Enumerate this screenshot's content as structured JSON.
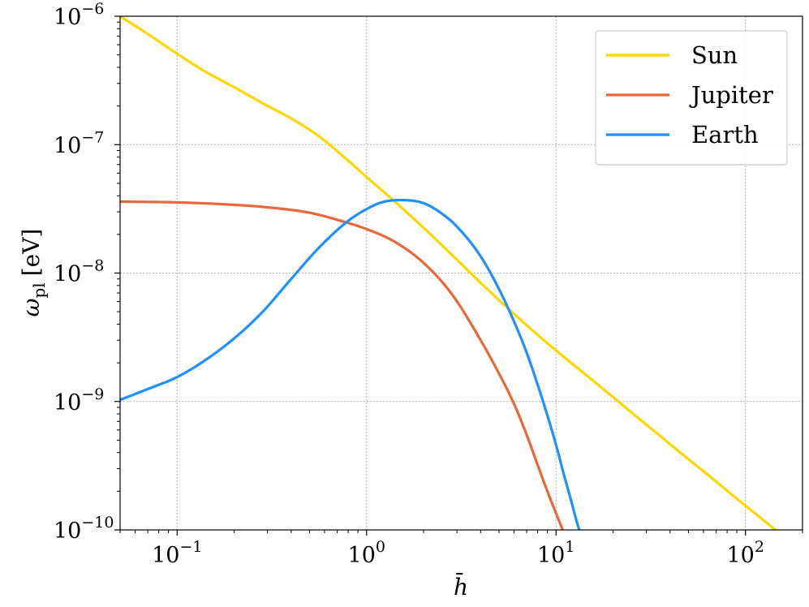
{
  "chart_data": {
    "type": "line",
    "xlabel": "h̄",
    "ylabel_main": "ω",
    "ylabel_sub": "pl",
    "ylabel_unit": "[eV]",
    "x_scale": "log",
    "y_scale": "log",
    "xlim": [
      0.05,
      200
    ],
    "ylim": [
      1e-10,
      1e-06
    ],
    "grid": true,
    "legend_position": "top-right",
    "x_ticks": [
      {
        "value": 0.1,
        "base": "10",
        "exp": "−1"
      },
      {
        "value": 1,
        "base": "10",
        "exp": "0"
      },
      {
        "value": 10,
        "base": "10",
        "exp": "1"
      },
      {
        "value": 100,
        "base": "10",
        "exp": "2"
      }
    ],
    "y_ticks": [
      {
        "value": 1e-10,
        "base": "10",
        "exp": "−10"
      },
      {
        "value": 1e-09,
        "base": "10",
        "exp": "−9"
      },
      {
        "value": 1e-08,
        "base": "10",
        "exp": "−8"
      },
      {
        "value": 1e-07,
        "base": "10",
        "exp": "−7"
      },
      {
        "value": 1e-06,
        "base": "10",
        "exp": "−6"
      }
    ],
    "series": [
      {
        "name": "Sun",
        "color": "#FFD700",
        "points": [
          [
            0.05,
            1e-06
          ],
          [
            0.0707,
            7.2e-07
          ],
          [
            0.1,
            5.1e-07
          ],
          [
            0.141,
            3.7e-07
          ],
          [
            0.2,
            2.8e-07
          ],
          [
            0.283,
            2.1e-07
          ],
          [
            0.4,
            1.6e-07
          ],
          [
            0.566,
            1.15e-07
          ],
          [
            0.8,
            7.5e-08
          ],
          [
            1.0,
            5.6e-08
          ],
          [
            1.41,
            3.6e-08
          ],
          [
            2.0,
            2.25e-08
          ],
          [
            2.83,
            1.38e-08
          ],
          [
            4.0,
            8.4e-09
          ],
          [
            5.66,
            5.2e-09
          ],
          [
            8.0,
            3.3e-09
          ],
          [
            11.3,
            2.15e-09
          ],
          [
            16.0,
            1.42e-09
          ],
          [
            22.6,
            9.3e-10
          ],
          [
            32.0,
            6.1e-10
          ],
          [
            45.3,
            4e-10
          ],
          [
            64.0,
            2.65e-10
          ],
          [
            90.5,
            1.74e-10
          ],
          [
            128,
            1.15e-10
          ],
          [
            170,
            8.2e-11
          ]
        ]
      },
      {
        "name": "Jupiter",
        "color": "#E8683A",
        "points": [
          [
            0.05,
            3.6e-08
          ],
          [
            0.1,
            3.55e-08
          ],
          [
            0.2,
            3.4e-08
          ],
          [
            0.3,
            3.25e-08
          ],
          [
            0.5,
            2.95e-08
          ],
          [
            0.7,
            2.6e-08
          ],
          [
            1.0,
            2.2e-08
          ],
          [
            1.41,
            1.75e-08
          ],
          [
            2.0,
            1.2e-08
          ],
          [
            2.83,
            6.8e-09
          ],
          [
            4.0,
            3e-09
          ],
          [
            5.0,
            1.65e-09
          ],
          [
            6.0,
            9.6e-10
          ],
          [
            7.0,
            5.5e-10
          ],
          [
            8.0,
            3.2e-10
          ],
          [
            9.0,
            2e-10
          ],
          [
            10.0,
            1.35e-10
          ],
          [
            11.5,
            8e-11
          ]
        ]
      },
      {
        "name": "Earth",
        "color": "#1E90FF",
        "points": [
          [
            0.05,
            1.03e-09
          ],
          [
            0.07,
            1.25e-09
          ],
          [
            0.1,
            1.55e-09
          ],
          [
            0.141,
            2.1e-09
          ],
          [
            0.2,
            3.1e-09
          ],
          [
            0.283,
            5e-09
          ],
          [
            0.4,
            9e-09
          ],
          [
            0.566,
            1.6e-08
          ],
          [
            0.8,
            2.55e-08
          ],
          [
            1.0,
            3.15e-08
          ],
          [
            1.2,
            3.55e-08
          ],
          [
            1.5,
            3.7e-08
          ],
          [
            2.0,
            3.5e-08
          ],
          [
            2.5,
            2.9e-08
          ],
          [
            3.0,
            2.3e-08
          ],
          [
            4.0,
            1.35e-08
          ],
          [
            5.0,
            7.5e-09
          ],
          [
            6.0,
            4.2e-09
          ],
          [
            7.0,
            2.4e-09
          ],
          [
            8.0,
            1.35e-09
          ],
          [
            9.0,
            7.8e-10
          ],
          [
            10.0,
            4.6e-10
          ],
          [
            11.0,
            2.7e-10
          ],
          [
            12.0,
            1.7e-10
          ],
          [
            13.0,
            1.1e-10
          ],
          [
            14.0,
            8e-11
          ]
        ]
      }
    ]
  }
}
